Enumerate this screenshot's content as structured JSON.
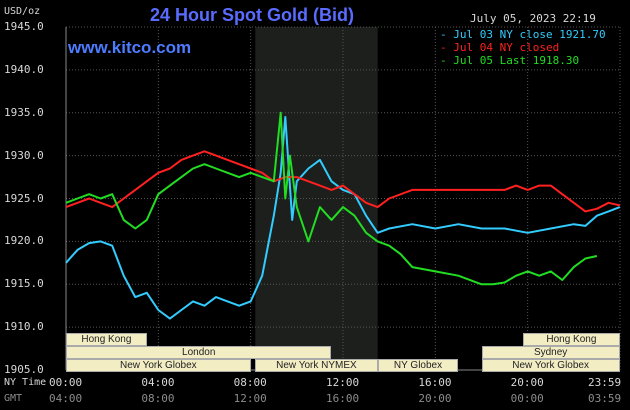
{
  "chart_data": {
    "type": "line",
    "title": "24 Hour Spot Gold (Bid)",
    "website": "www.kitco.com",
    "timestamp": "July 05, 2023 22:19",
    "y_units": "USD/oz",
    "ylim": [
      1905,
      1945
    ],
    "y_ticks": [
      "1945.0",
      "1940.0",
      "1935.0",
      "1930.0",
      "1925.0",
      "1920.0",
      "1915.0",
      "1910.0",
      "1905.0"
    ],
    "x_label_ny": "NY Time",
    "x_label_gmt": "GMT",
    "x_ticks_ny": [
      "00:00",
      "04:00",
      "08:00",
      "12:00",
      "16:00",
      "20:00",
      "23:59"
    ],
    "x_ticks_gmt": [
      "04:00",
      "08:00",
      "12:00",
      "16:00",
      "20:00",
      "00:00",
      "03:59"
    ],
    "grid": true,
    "legend_position": "top-right",
    "series": [
      {
        "name": "Jul 03 NY close 1921.70",
        "legend": "- Jul 03 NY close 1921.70",
        "color": "#33ccff",
        "x": [
          0,
          0.5,
          1.0,
          1.5,
          2.0,
          2.5,
          3.0,
          3.5,
          4.0,
          4.5,
          5.0,
          5.5,
          6.0,
          6.5,
          7.0,
          7.5,
          8.0,
          8.5,
          9.0,
          9.3,
          9.5,
          9.8,
          10.0,
          10.5,
          11.0,
          11.5,
          12.0,
          12.5,
          13.0,
          13.5,
          14.0,
          15.0,
          16.0,
          17.0,
          18.0,
          19.0,
          20.0,
          21.0,
          22.0,
          22.5,
          23.0,
          23.5,
          23.99
        ],
        "y": [
          1917.5,
          1919.0,
          1919.8,
          1920.0,
          1919.5,
          1916.0,
          1913.5,
          1914.0,
          1912.0,
          1911.0,
          1912.0,
          1913.0,
          1912.5,
          1913.5,
          1913.0,
          1912.5,
          1913.0,
          1916.0,
          1923.0,
          1928.0,
          1934.5,
          1922.5,
          1927.0,
          1928.5,
          1929.5,
          1927.0,
          1926.0,
          1925.5,
          1923.0,
          1921.0,
          1921.5,
          1922.0,
          1921.5,
          1922.0,
          1921.5,
          1921.5,
          1921.0,
          1921.5,
          1922.0,
          1921.8,
          1923.0,
          1923.5,
          1924.0
        ]
      },
      {
        "name": "Jul 04 NY closed",
        "legend": "- Jul 04 NY closed",
        "color": "#ff2020",
        "x": [
          0,
          0.5,
          1.0,
          1.5,
          2.0,
          2.5,
          3.0,
          3.5,
          4.0,
          4.5,
          5.0,
          5.5,
          6.0,
          6.5,
          7.0,
          7.5,
          8.0,
          8.5,
          9.0,
          9.5,
          10.0,
          10.5,
          11.0,
          11.5,
          12.0,
          12.5,
          13.0,
          13.5,
          14.0,
          15.0,
          16.0,
          17.0,
          18.0,
          19.0,
          19.5,
          20.0,
          20.5,
          21.0,
          21.5,
          22.0,
          22.5,
          23.0,
          23.5,
          23.99
        ],
        "y": [
          1924.0,
          1924.5,
          1925.0,
          1924.5,
          1924.0,
          1925.0,
          1926.0,
          1927.0,
          1928.0,
          1928.5,
          1929.5,
          1930.0,
          1930.5,
          1930.0,
          1929.5,
          1929.0,
          1928.5,
          1928.0,
          1927.0,
          1927.5,
          1927.5,
          1927.0,
          1926.5,
          1926.0,
          1926.5,
          1925.5,
          1924.5,
          1924.0,
          1925.0,
          1926.0,
          1926.0,
          1926.0,
          1926.0,
          1926.0,
          1926.5,
          1926.0,
          1926.5,
          1926.5,
          1925.5,
          1924.5,
          1923.5,
          1923.8,
          1924.5,
          1924.2
        ]
      },
      {
        "name": "Jul 05 Last 1918.30",
        "legend": "- Jul 05 Last 1918.30",
        "color": "#22dd22",
        "x": [
          0,
          0.5,
          1.0,
          1.5,
          2.0,
          2.5,
          3.0,
          3.5,
          4.0,
          4.5,
          5.0,
          5.5,
          6.0,
          6.5,
          7.0,
          7.5,
          8.0,
          8.5,
          9.0,
          9.3,
          9.5,
          9.7,
          10.0,
          10.5,
          11.0,
          11.5,
          12.0,
          12.5,
          13.0,
          13.5,
          14.0,
          14.5,
          15.0,
          16.0,
          17.0,
          18.0,
          18.5,
          19.0,
          19.5,
          20.0,
          20.5,
          21.0,
          21.5,
          22.0,
          22.5,
          23.0
        ],
        "y": [
          1924.5,
          1925.0,
          1925.5,
          1925.0,
          1925.5,
          1922.5,
          1921.5,
          1922.5,
          1925.5,
          1926.5,
          1927.5,
          1928.5,
          1929.0,
          1928.5,
          1928.0,
          1927.5,
          1928.0,
          1927.5,
          1927.0,
          1935.0,
          1925.0,
          1930.0,
          1924.0,
          1920.0,
          1924.0,
          1922.5,
          1924.0,
          1923.0,
          1921.0,
          1920.0,
          1919.5,
          1918.5,
          1917.0,
          1916.5,
          1916.0,
          1915.0,
          1915.0,
          1915.2,
          1916.0,
          1916.5,
          1916.0,
          1916.5,
          1915.5,
          1917.0,
          1918.0,
          1918.3
        ]
      }
    ],
    "sessions": [
      {
        "label": "Hong Kong",
        "row": 0,
        "start": 0,
        "end": 3.5
      },
      {
        "label": "London",
        "row": 1,
        "start": 0,
        "end": 11.5
      },
      {
        "label": "New York Globex",
        "row": 2,
        "start": 0,
        "end": 8.0
      },
      {
        "label": "New York NYMEX",
        "row": 2,
        "start": 8.2,
        "end": 13.5
      },
      {
        "label": "NY Globex",
        "row": 2,
        "start": 13.5,
        "end": 17.0
      },
      {
        "label": "Hong Kong",
        "row": 0,
        "start": 19.8,
        "end": 23.99
      },
      {
        "label": "Sydney",
        "row": 1,
        "start": 18.0,
        "end": 23.99
      },
      {
        "label": "New York Globex",
        "row": 2,
        "start": 18.0,
        "end": 23.99
      }
    ]
  },
  "colors": {
    "background": "#000000",
    "plot_background": "#000000",
    "nymex_shade": "#1c1f1c",
    "grid": "#555555",
    "title": "#5a6cff",
    "website": "#4d7cff"
  }
}
